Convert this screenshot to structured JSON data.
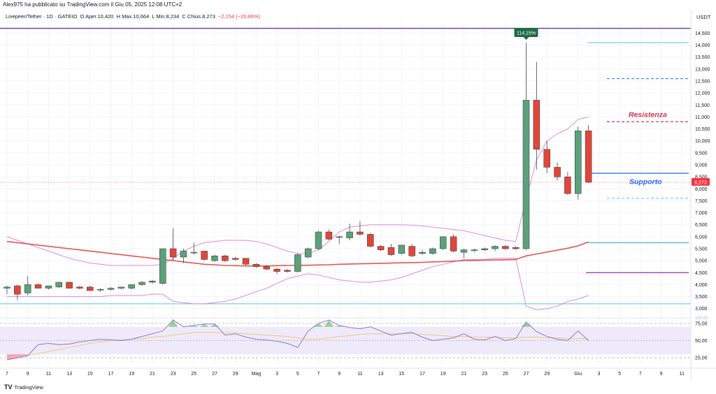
{
  "header": {
    "publisher_text": "Alex975 ha pubblicato su TradingView.com il Giu 05, 2025 12:08 UTC+2"
  },
  "symbol_bar": {
    "symbol": "Livepeer/Tether · 1D · GATEIO",
    "open": "O Aper.10,420",
    "high": "H Max.10,664",
    "low": "L Min.8,234",
    "close": "C Chius.8,273",
    "change": "−2,154 (−20,66%)"
  },
  "currency_label": "USDT",
  "footer": {
    "brand": "TradingView",
    "logo_glyph": "TV"
  },
  "colors": {
    "up": "#5ba17a",
    "down": "#e0473a",
    "ema": "#e55353",
    "bollinger": "#d98ad9",
    "rsi": "#8a7bd1",
    "rsi_ma": "#f2c879",
    "rsi_band_fill": "#efeaf9",
    "top_line": "#5b3aa6",
    "resist_line": "#d3324e",
    "support_line": "#2962ff",
    "cyan_line": "#50c8d6"
  },
  "annotations": {
    "peak_badge": "114,15%",
    "resistance_label": "Resistenza",
    "support_label": "Supporto",
    "last_price_badge": "8,273"
  },
  "chart_data": {
    "type": "candlestick",
    "price_axis": {
      "ylim": [
        2700,
        14950
      ],
      "ticks": [
        "14,500",
        "14,000",
        "13,500",
        "13,000",
        "12,500",
        "12,000",
        "11,500",
        "11,000",
        "10,500",
        "10,000",
        "9,500",
        "9,000",
        "8,500",
        "8,000",
        "7,500",
        "7,000",
        "6,500",
        "6,000",
        "5,500",
        "5,000",
        "4,500",
        "4,000",
        "3,500",
        "3,000"
      ],
      "tick_values": [
        14500,
        14000,
        13500,
        13000,
        12500,
        12000,
        11500,
        11000,
        10500,
        10000,
        9500,
        9000,
        8500,
        8000,
        7500,
        7000,
        6500,
        6000,
        5500,
        5000,
        4500,
        4000,
        3500,
        3000
      ]
    },
    "x_axis": {
      "labels": [
        "7",
        "9",
        "11",
        "13",
        "15",
        "17",
        "19",
        "21",
        "23",
        "25",
        "27",
        "29",
        "Mag",
        "3",
        "5",
        "7",
        "9",
        "11",
        "13",
        "15",
        "17",
        "19",
        "21",
        "23",
        "25",
        "27",
        "29",
        "Giu",
        "3",
        "5",
        "7",
        "9",
        "11"
      ],
      "label_days": [
        0,
        2,
        4,
        6,
        8,
        10,
        12,
        14,
        16,
        18,
        20,
        22,
        24,
        26,
        28,
        30,
        32,
        34,
        36,
        38,
        40,
        42,
        44,
        46,
        48,
        50,
        52,
        55,
        57,
        59,
        61,
        63,
        65
      ]
    },
    "candles": [
      {
        "o": 3850,
        "h": 3950,
        "l": 3600,
        "c": 3900
      },
      {
        "o": 3950,
        "h": 4000,
        "l": 3350,
        "c": 3600
      },
      {
        "o": 3650,
        "h": 4350,
        "l": 3550,
        "c": 4000
      },
      {
        "o": 4000,
        "h": 4050,
        "l": 3850,
        "c": 3850
      },
      {
        "o": 3850,
        "h": 3950,
        "l": 3800,
        "c": 3950
      },
      {
        "o": 3900,
        "h": 4100,
        "l": 3850,
        "c": 4100
      },
      {
        "o": 4100,
        "h": 4100,
        "l": 3850,
        "c": 3850
      },
      {
        "o": 3900,
        "h": 3950,
        "l": 3800,
        "c": 3850
      },
      {
        "o": 3900,
        "h": 3950,
        "l": 3750,
        "c": 3750
      },
      {
        "o": 3800,
        "h": 3850,
        "l": 3700,
        "c": 3800
      },
      {
        "o": 3800,
        "h": 3900,
        "l": 3750,
        "c": 3850
      },
      {
        "o": 3850,
        "h": 3900,
        "l": 3800,
        "c": 3900
      },
      {
        "o": 3850,
        "h": 4000,
        "l": 3800,
        "c": 4000
      },
      {
        "o": 4000,
        "h": 4150,
        "l": 3950,
        "c": 4100
      },
      {
        "o": 4100,
        "h": 4200,
        "l": 4050,
        "c": 4150
      },
      {
        "o": 4050,
        "h": 5500,
        "l": 4000,
        "c": 5500
      },
      {
        "o": 5500,
        "h": 6350,
        "l": 5000,
        "c": 5150
      },
      {
        "o": 5150,
        "h": 5500,
        "l": 4900,
        "c": 5400
      },
      {
        "o": 5350,
        "h": 5750,
        "l": 5250,
        "c": 5350
      },
      {
        "o": 5400,
        "h": 5400,
        "l": 5000,
        "c": 5050
      },
      {
        "o": 5000,
        "h": 5250,
        "l": 4950,
        "c": 5200
      },
      {
        "o": 5200,
        "h": 5250,
        "l": 4950,
        "c": 5000
      },
      {
        "o": 5100,
        "h": 5150,
        "l": 5000,
        "c": 5050
      },
      {
        "o": 5100,
        "h": 5100,
        "l": 4800,
        "c": 4850
      },
      {
        "o": 4850,
        "h": 4900,
        "l": 4700,
        "c": 4750
      },
      {
        "o": 4750,
        "h": 4800,
        "l": 4600,
        "c": 4650
      },
      {
        "o": 4650,
        "h": 4700,
        "l": 4450,
        "c": 4550
      },
      {
        "o": 4600,
        "h": 4650,
        "l": 4500,
        "c": 4550
      },
      {
        "o": 4550,
        "h": 5300,
        "l": 4500,
        "c": 5250
      },
      {
        "o": 5150,
        "h": 5550,
        "l": 5100,
        "c": 5500
      },
      {
        "o": 5500,
        "h": 6250,
        "l": 5450,
        "c": 6200
      },
      {
        "o": 6200,
        "h": 6300,
        "l": 5850,
        "c": 5900
      },
      {
        "o": 6000,
        "h": 6050,
        "l": 5700,
        "c": 6000
      },
      {
        "o": 5950,
        "h": 6550,
        "l": 5850,
        "c": 6200
      },
      {
        "o": 6200,
        "h": 6650,
        "l": 6050,
        "c": 6100
      },
      {
        "o": 6100,
        "h": 6150,
        "l": 5550,
        "c": 5600
      },
      {
        "o": 5600,
        "h": 5650,
        "l": 5400,
        "c": 5450
      },
      {
        "o": 5550,
        "h": 5700,
        "l": 5200,
        "c": 5250
      },
      {
        "o": 5300,
        "h": 5650,
        "l": 5250,
        "c": 5650
      },
      {
        "o": 5600,
        "h": 5700,
        "l": 5150,
        "c": 5200
      },
      {
        "o": 5300,
        "h": 5450,
        "l": 5250,
        "c": 5350
      },
      {
        "o": 5300,
        "h": 5550,
        "l": 5250,
        "c": 5500
      },
      {
        "o": 5500,
        "h": 6000,
        "l": 5450,
        "c": 6000
      },
      {
        "o": 6000,
        "h": 6100,
        "l": 5350,
        "c": 5400
      },
      {
        "o": 5350,
        "h": 5500,
        "l": 5100,
        "c": 5450
      },
      {
        "o": 5450,
        "h": 5500,
        "l": 5350,
        "c": 5450
      },
      {
        "o": 5450,
        "h": 5550,
        "l": 5400,
        "c": 5500
      },
      {
        "o": 5500,
        "h": 5650,
        "l": 5400,
        "c": 5600
      },
      {
        "o": 5600,
        "h": 5650,
        "l": 5450,
        "c": 5500
      },
      {
        "o": 5550,
        "h": 5600,
        "l": 5450,
        "c": 5500
      },
      {
        "o": 5500,
        "h": 14100,
        "l": 5450,
        "c": 11700
      },
      {
        "o": 11700,
        "h": 13300,
        "l": 8800,
        "c": 9650
      },
      {
        "o": 9650,
        "h": 10000,
        "l": 8650,
        "c": 8900
      },
      {
        "o": 8900,
        "h": 9100,
        "l": 8350,
        "c": 8500
      },
      {
        "o": 8500,
        "h": 8700,
        "l": 7750,
        "c": 7800
      },
      {
        "o": 7800,
        "h": 10600,
        "l": 7550,
        "c": 10420
      },
      {
        "o": 10420,
        "h": 10664,
        "l": 8234,
        "c": 8273
      }
    ],
    "ema200": [
      5800,
      5750,
      5700,
      5650,
      5600,
      5550,
      5500,
      5450,
      5400,
      5350,
      5300,
      5250,
      5200,
      5150,
      5100,
      5050,
      5000,
      4950,
      4900,
      4850,
      4830,
      4800,
      4790,
      4780,
      4780,
      4780,
      4790,
      4800,
      4800,
      4810,
      4820,
      4830,
      4850,
      4860,
      4870,
      4880,
      4890,
      4900,
      4910,
      4920,
      4930,
      4950,
      4960,
      4980,
      5000,
      5010,
      5020,
      5030,
      5040,
      5050,
      5200,
      5280,
      5360,
      5440,
      5520,
      5620,
      5780
    ],
    "bollinger_upper": [
      6000,
      5850,
      5700,
      5550,
      5400,
      5250,
      5100,
      5000,
      4900,
      4850,
      4800,
      4800,
      4800,
      4800,
      4800,
      4850,
      5100,
      5400,
      5600,
      5750,
      5800,
      5850,
      5850,
      5850,
      5800,
      5700,
      5550,
      5400,
      5300,
      5300,
      5450,
      5800,
      6200,
      6400,
      6450,
      6500,
      6500,
      6500,
      6500,
      6480,
      6450,
      6400,
      6350,
      6300,
      6250,
      6150,
      6050,
      5950,
      5850,
      5800,
      7600,
      9200,
      10000,
      10300,
      10500,
      10900,
      11000
    ],
    "bollinger_lower": [
      3500,
      3500,
      3500,
      3500,
      3500,
      3500,
      3500,
      3500,
      3500,
      3500,
      3550,
      3550,
      3550,
      3550,
      3600,
      3600,
      3300,
      3250,
      3200,
      3200,
      3250,
      3300,
      3400,
      3550,
      3700,
      3850,
      4050,
      4250,
      4350,
      4450,
      4400,
      4300,
      4200,
      4150,
      4100,
      4100,
      4150,
      4200,
      4300,
      4450,
      4600,
      4750,
      4850,
      4950,
      5050,
      5050,
      5050,
      5100,
      5100,
      5100,
      3100,
      2950,
      3000,
      3100,
      3300,
      3400,
      3550
    ]
  },
  "rsi": {
    "type": "line",
    "ylim": [
      15,
      80
    ],
    "ticks": [
      "75,00",
      "50,00",
      "25,00"
    ],
    "tick_values": [
      75,
      50,
      25
    ],
    "hidden_top_tick": "100,00",
    "band": [
      30,
      70
    ],
    "values": [
      22,
      25,
      28,
      44,
      46,
      44,
      45,
      48,
      50,
      52,
      51,
      50,
      52,
      56,
      60,
      64,
      80,
      70,
      72,
      74,
      74,
      58,
      60,
      55,
      52,
      51,
      49,
      46,
      40,
      64,
      75,
      80,
      72,
      69,
      67,
      70,
      64,
      58,
      60,
      62,
      55,
      50,
      52,
      54,
      60,
      52,
      51,
      56,
      50,
      53,
      77,
      63,
      56,
      52,
      50,
      64,
      50
    ],
    "ma_values": [
      26,
      27,
      28,
      31,
      34,
      37,
      40,
      43,
      46,
      48,
      50,
      51,
      52,
      53,
      55,
      56,
      58,
      60,
      62,
      62,
      62,
      61,
      61,
      60,
      59,
      58,
      57,
      56,
      54,
      52,
      52,
      54,
      56,
      57,
      59,
      60,
      60,
      60,
      60,
      60,
      59,
      58,
      57,
      56,
      56,
      55,
      55,
      55,
      54,
      54,
      55,
      55,
      54,
      54,
      53,
      53,
      53
    ]
  }
}
